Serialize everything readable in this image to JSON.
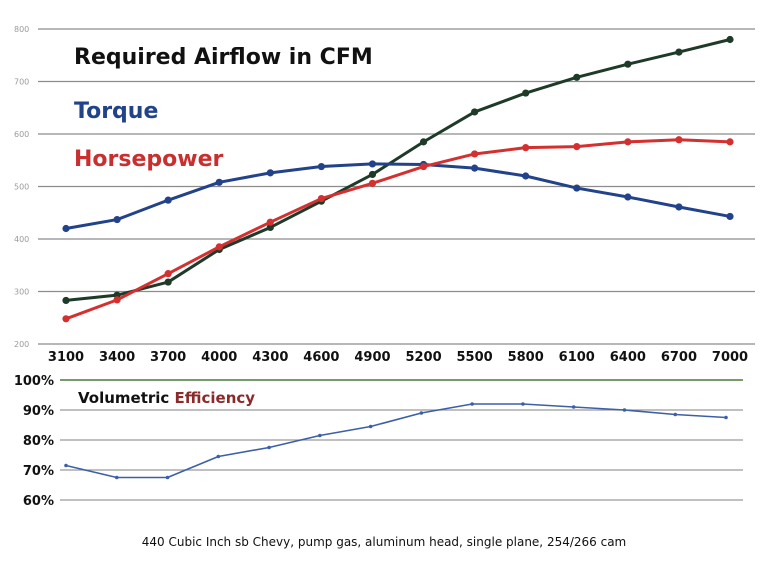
{
  "chart_data": [
    {
      "type": "line",
      "title": "Required Airflow in CFM",
      "categories": [
        "3100",
        "3400",
        "3700",
        "4000",
        "4300",
        "4600",
        "4900",
        "5200",
        "5500",
        "5800",
        "6100",
        "6400",
        "6700",
        "7000"
      ],
      "ylim": [
        200,
        800
      ],
      "yticks": [
        "200",
        "300",
        "400",
        "500",
        "600",
        "700",
        "800"
      ],
      "series": [
        {
          "name": "Required Airflow in CFM",
          "color": "#1e3a28",
          "values": [
            283,
            293,
            318,
            380,
            422,
            472,
            523,
            585,
            642,
            678,
            708,
            733,
            756,
            780
          ]
        },
        {
          "name": "Torque",
          "color": "#22428a",
          "values": [
            420,
            437,
            474,
            508,
            526,
            538,
            543,
            542,
            535,
            520,
            497,
            480,
            461,
            443
          ]
        },
        {
          "name": "Horsepower",
          "color": "#d43030",
          "values": [
            248,
            284,
            334,
            385,
            432,
            477,
            506,
            538,
            562,
            574,
            576,
            585,
            589,
            585
          ]
        }
      ]
    },
    {
      "type": "line",
      "title": "Volumetric Efficiency",
      "title_parts": {
        "a": "Volumetric ",
        "b": "Efficiency"
      },
      "ylim": [
        60,
        100
      ],
      "yticks": [
        "60%",
        "70%",
        "80%",
        "90%",
        "100%"
      ],
      "categories": [
        "3100",
        "3400",
        "3700",
        "4000",
        "4300",
        "4600",
        "4900",
        "5200",
        "5500",
        "5800",
        "6100",
        "6400",
        "6700",
        "7000"
      ],
      "series": [
        {
          "name": "Volumetric Efficiency",
          "color": "#3c5fa8",
          "values": [
            71.5,
            67.5,
            67.5,
            74.5,
            77.5,
            81.5,
            84.5,
            89.0,
            92.0,
            92.0,
            91.0,
            90.0,
            88.5,
            87.5
          ]
        }
      ]
    }
  ],
  "caption": "440 Cubic Inch sb Chevy, pump gas, aluminum head, single plane, 254/266 cam"
}
